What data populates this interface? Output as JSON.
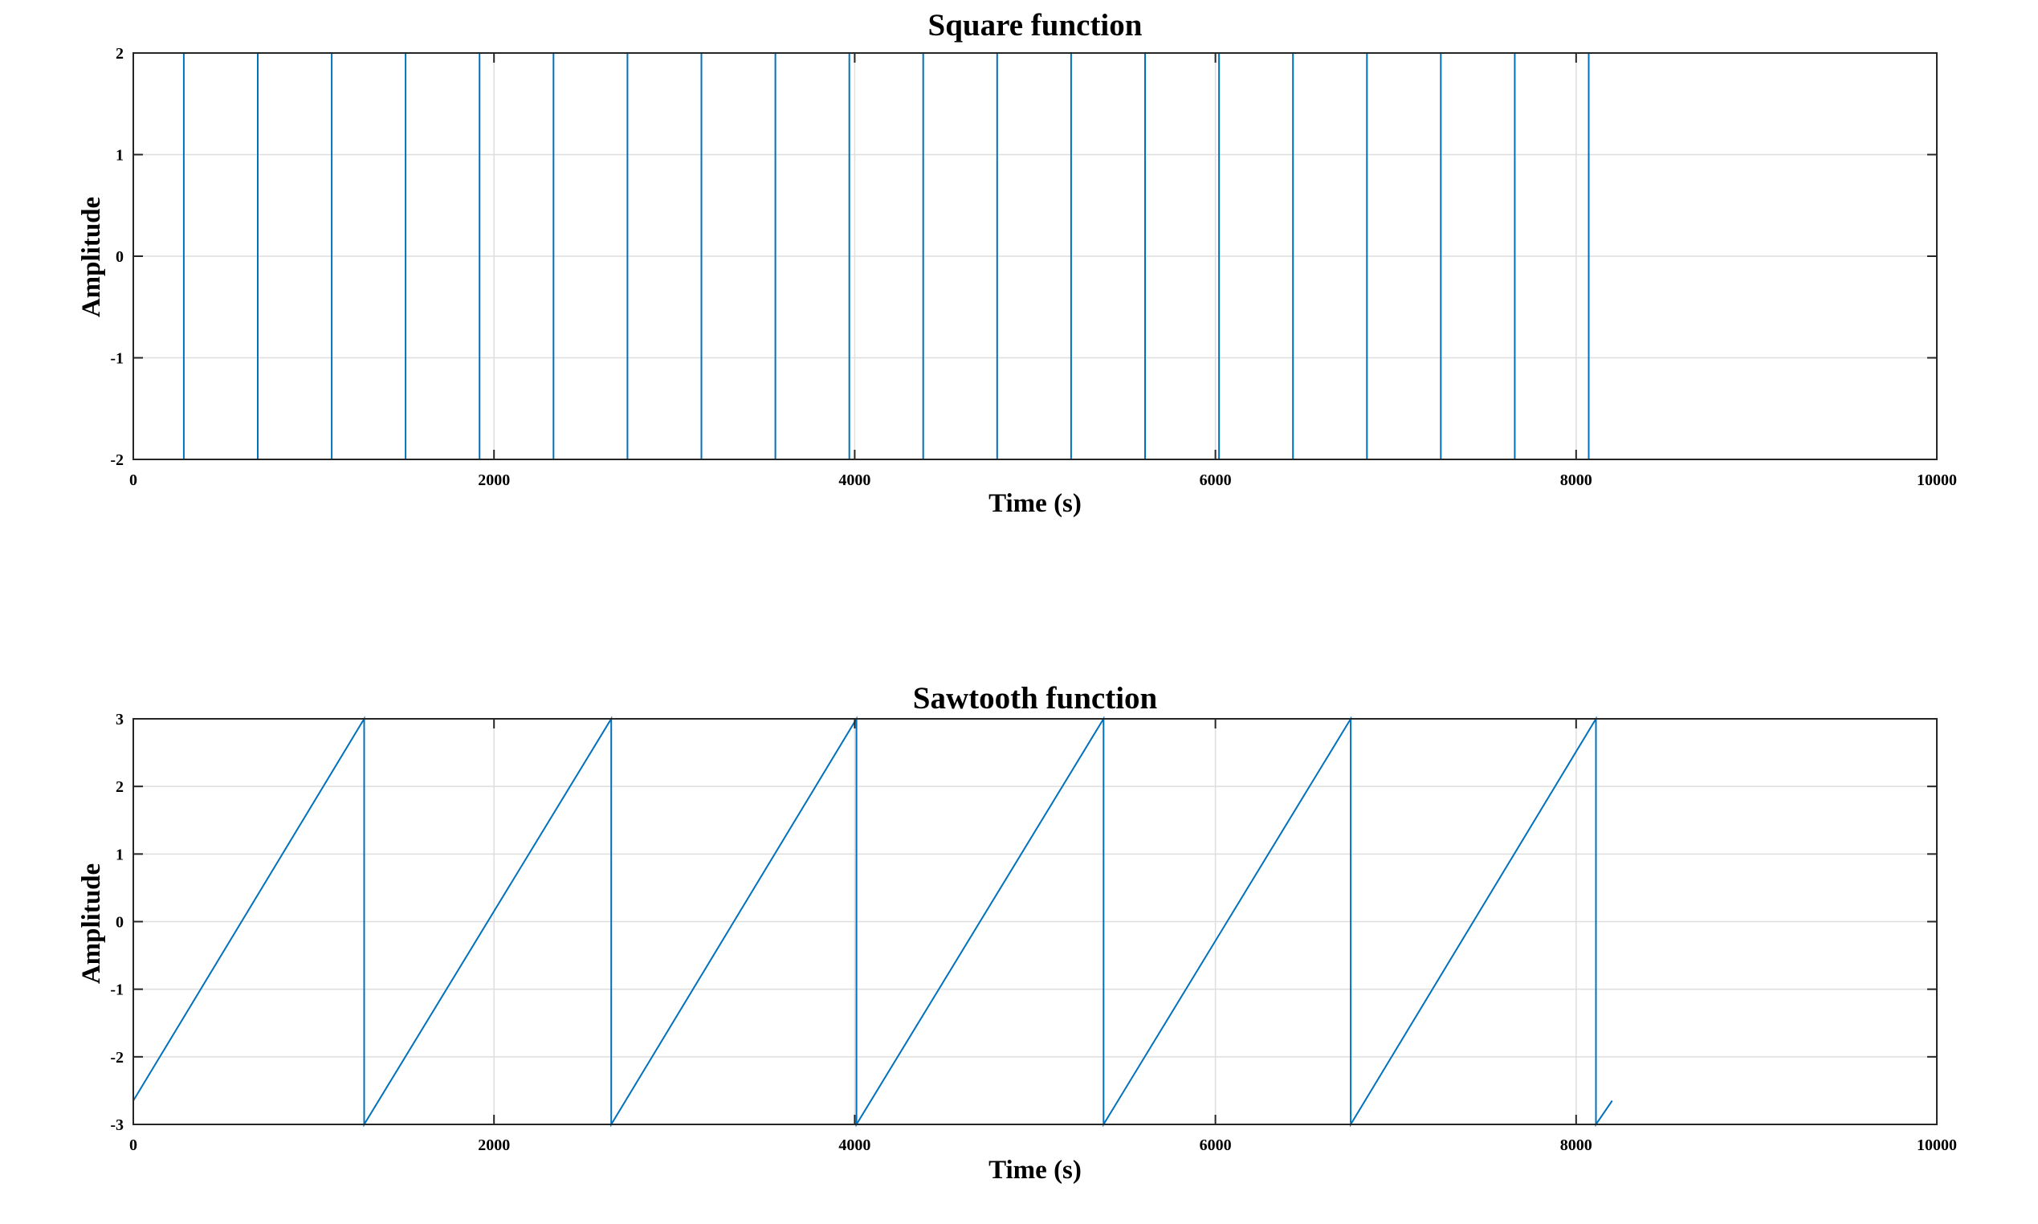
{
  "chart_data": [
    {
      "type": "line",
      "title": "Square function",
      "xlabel": "Time (s)",
      "ylabel": "Amplitude",
      "xlim": [
        0,
        10000
      ],
      "ylim": [
        -2,
        2
      ],
      "xticks": [
        "0",
        "2000",
        "4000",
        "6000",
        "8000",
        "10000"
      ],
      "yticks": [
        "-2",
        "-1",
        "0",
        "1",
        "2"
      ],
      "grid": true,
      "color": "#0072BD",
      "series": [
        {
          "x": [
            0,
            280,
            280,
            690,
            690,
            1100,
            1100,
            1510,
            1510,
            1920,
            1920,
            2330,
            2330,
            2740,
            2740,
            3150,
            3150,
            3560,
            3560,
            3970,
            3970,
            4380,
            4380,
            4790,
            4790,
            5200,
            5200,
            5610,
            5610,
            6020,
            6020,
            6430,
            6430,
            6840,
            6840,
            7250,
            7250,
            7660,
            7660,
            8070,
            8070,
            8200
          ],
          "y": [
            2,
            2,
            -2,
            -2,
            2,
            2,
            -2,
            -2,
            2,
            2,
            -2,
            -2,
            2,
            2,
            -2,
            -2,
            2,
            2,
            -2,
            -2,
            2,
            2,
            -2,
            -2,
            2,
            2,
            -2,
            -2,
            2,
            2,
            -2,
            -2,
            2,
            2,
            -2,
            -2,
            2,
            2,
            -2,
            -2,
            2,
            2
          ]
        }
      ]
    },
    {
      "type": "line",
      "title": "Sawtooth function",
      "xlabel": "Time (s)",
      "ylabel": "Amplitude",
      "xlim": [
        0,
        10000
      ],
      "ylim": [
        -3,
        3
      ],
      "xticks": [
        "0",
        "2000",
        "4000",
        "6000",
        "8000",
        "10000"
      ],
      "yticks": [
        "-3",
        "-2",
        "-1",
        "0",
        "1",
        "2",
        "3"
      ],
      "grid": true,
      "color": "#0072BD",
      "series": [
        {
          "x": [
            0,
            1280,
            1280,
            2650,
            2650,
            4010,
            4010,
            5380,
            5380,
            6750,
            6750,
            8110,
            8110,
            8200
          ],
          "y": [
            -2.65,
            3,
            -3,
            3,
            -3,
            3,
            -3,
            3,
            -3,
            3,
            -3,
            3,
            -3,
            -2.65
          ]
        }
      ]
    }
  ]
}
